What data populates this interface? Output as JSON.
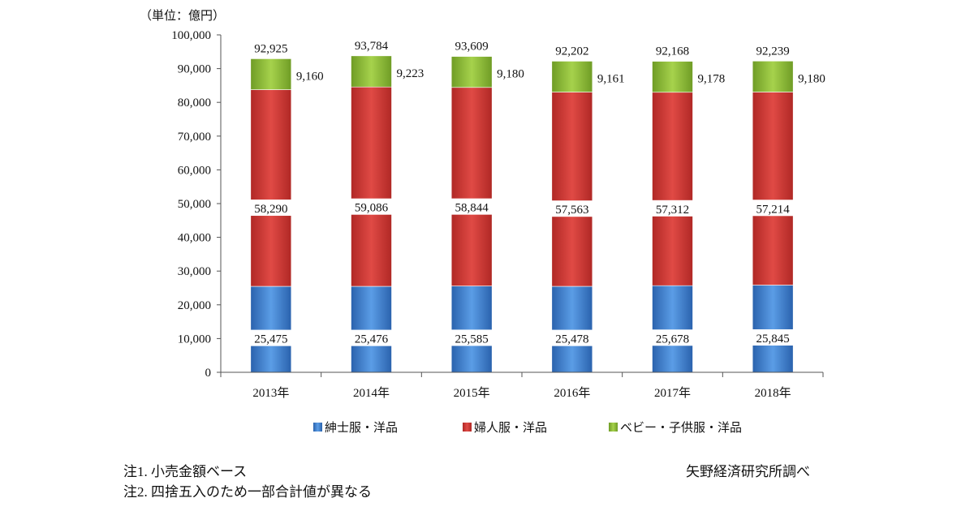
{
  "chart_data": {
    "type": "bar",
    "stacked": true,
    "unit_label": "（単位：億円）",
    "categories": [
      "2013年",
      "2014年",
      "2015年",
      "2016年",
      "2017年",
      "2018年"
    ],
    "series": [
      {
        "name": "紳士服・洋品",
        "values": [
          25475,
          25476,
          25585,
          25478,
          25678,
          25845
        ],
        "color": "#3a78c8"
      },
      {
        "name": "婦人服・洋品",
        "values": [
          58290,
          59086,
          58844,
          57563,
          57312,
          57214
        ],
        "color": "#d03a36"
      },
      {
        "name": "ベビー・子供服・洋品",
        "values": [
          9160,
          9223,
          9180,
          9161,
          9178,
          9180
        ],
        "color": "#8dbb3c"
      }
    ],
    "totals": [
      92925,
      93784,
      93609,
      92202,
      92168,
      92239
    ],
    "y_ticks": [
      "0",
      "10,000",
      "20,000",
      "30,000",
      "40,000",
      "50,000",
      "60,000",
      "70,000",
      "80,000",
      "90,000",
      "100,000"
    ],
    "ylim": [
      0,
      100000
    ],
    "legend_position": "bottom"
  },
  "notes": {
    "note1": "注1. 小売金額ベース",
    "note2": "注2. 四捨五入のため一部合計値が異なる",
    "source": "矢野経済研究所調べ"
  }
}
